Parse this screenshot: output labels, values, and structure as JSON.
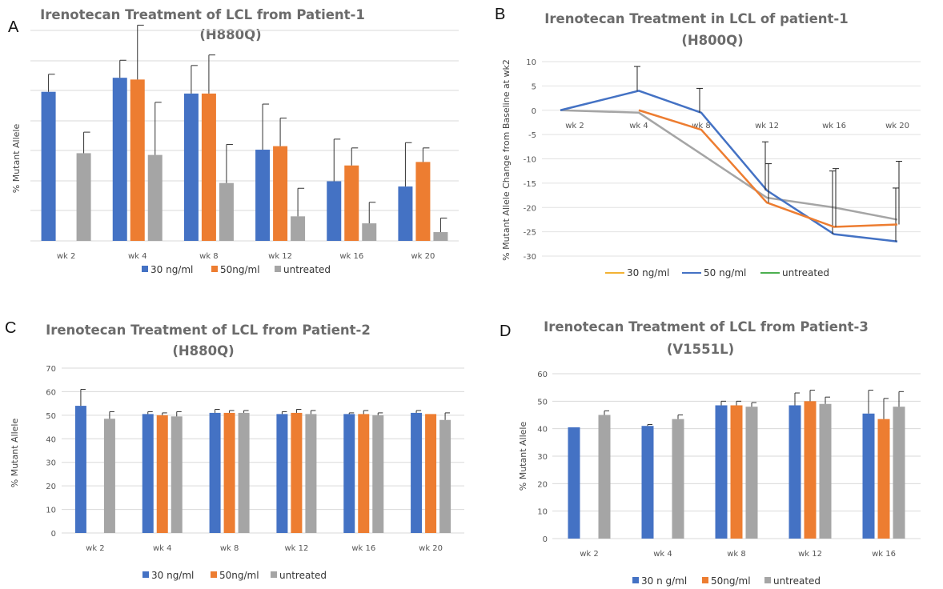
{
  "colors": {
    "c30": "#4472C4",
    "c50": "#ED7D31",
    "untreated": "#A5A5A5",
    "legend_30_line": "#F2B234",
    "legend_untreated_line": "#4CAF50"
  },
  "chart_data": [
    {
      "panel": "A",
      "type": "bar",
      "title_line1": "Irenotecan Treatment of LCL from Patient-1",
      "title_line2": "(H880Q)",
      "ylabel": "% Mutant Allele",
      "categories": [
        "wk 2",
        "wk 4",
        "wk 8",
        "wk 12",
        "wk 16",
        "wk 20"
      ],
      "ylim": [
        0,
        60
      ],
      "series": [
        {
          "name": "30 ng/ml",
          "values": [
            42.5,
            46.5,
            42,
            26,
            17,
            15.5
          ],
          "err": [
            5,
            5,
            8,
            13,
            12,
            12.5
          ]
        },
        {
          "name": "50ng/ml",
          "values": [
            null,
            46,
            42,
            27,
            21.5,
            22.5
          ],
          "err": [
            null,
            15.5,
            11,
            8,
            5,
            4
          ]
        },
        {
          "name": "untreated",
          "values": [
            25,
            24.5,
            16.5,
            7,
            5,
            2.5
          ],
          "err": [
            6,
            15,
            11,
            8,
            6,
            4
          ]
        }
      ]
    },
    {
      "panel": "B",
      "type": "line",
      "title_line1": "Irenotecan Treatment in LCL of patient-1",
      "title_line2": "(H800Q)",
      "ylabel": "% Mutant Allele Change from Baseline at wk2",
      "categories": [
        "wk 2",
        "wk 4",
        "wk 8",
        "wk 12",
        "wk 16",
        "wk 20"
      ],
      "category_labels": [
        "wk 2",
        "wk 4",
        "wk 8",
        "wk 12",
        "wk 16",
        "wk 20"
      ],
      "y_ticks": [
        10,
        5,
        0,
        -5,
        -10,
        -15,
        -20,
        -25,
        -30
      ],
      "ylim": [
        -30,
        10
      ],
      "series": [
        {
          "name": "30 ng/ml",
          "values": [
            null,
            0,
            -4,
            -19,
            -24,
            -23.5
          ],
          "err": [
            null,
            null,
            null,
            8,
            12,
            13
          ]
        },
        {
          "name": "50 ng/ml",
          "values": [
            0,
            4,
            -0.5,
            -16.5,
            -25.5,
            -27
          ],
          "err": [
            null,
            5,
            5,
            10,
            13,
            11
          ]
        },
        {
          "name": "untreated",
          "values": [
            0,
            -0.5,
            -9,
            -18,
            -20,
            -22.5
          ],
          "err": [
            null,
            null,
            null,
            null,
            null,
            null
          ]
        }
      ],
      "legend_labels": [
        "30 ng/ml",
        "50 ng/ml",
        "untreated"
      ]
    },
    {
      "panel": "C",
      "type": "bar",
      "title_line1": "Irenotecan Treatment of LCL from Patient-2",
      "title_line2": "(H880Q)",
      "ylabel": "% Mutant Allele",
      "categories": [
        "wk 2",
        "wk 4",
        "wk 8",
        "wk 12",
        "wk 16",
        "wk 20"
      ],
      "y_ticks": [
        0,
        10,
        20,
        30,
        40,
        50,
        60,
        70
      ],
      "ylim": [
        0,
        70
      ],
      "series": [
        {
          "name": "30 ng/ml",
          "values": [
            54,
            50.5,
            51,
            50.5,
            50.5,
            51
          ],
          "err": [
            7,
            1,
            1.5,
            1,
            0.5,
            1
          ]
        },
        {
          "name": "50ng/ml",
          "values": [
            null,
            50,
            51,
            51,
            50.5,
            50.5
          ],
          "err": [
            null,
            1,
            1,
            1.5,
            1.5,
            0
          ]
        },
        {
          "name": "untreated",
          "values": [
            48.5,
            49.5,
            51,
            50.5,
            50,
            48
          ],
          "err": [
            3,
            2,
            1,
            1.5,
            1,
            3
          ]
        }
      ]
    },
    {
      "panel": "D",
      "type": "bar",
      "title_line1": "Irenotecan Treatment of LCL from Patient-3",
      "title_line2": "(V1551L)",
      "ylabel": "% Mutant Allele",
      "categories": [
        "wk 2",
        "wk 4",
        "wk 8",
        "wk 12",
        "wk 16"
      ],
      "y_ticks": [
        0,
        10,
        20,
        30,
        40,
        50,
        60
      ],
      "ylim": [
        0,
        60
      ],
      "series": [
        {
          "name": "30 n g/ml",
          "values": [
            40.5,
            41,
            48.5,
            48.5,
            45.5
          ],
          "err": [
            0,
            0.5,
            1.5,
            4.5,
            8.5
          ]
        },
        {
          "name": "50ng/ml",
          "values": [
            null,
            null,
            48.5,
            50,
            43.5
          ],
          "err": [
            null,
            null,
            1.5,
            4,
            7.5
          ]
        },
        {
          "name": "untreated",
          "values": [
            45,
            43.5,
            48,
            49,
            48
          ],
          "err": [
            1.5,
            1.5,
            1.5,
            2.5,
            5.5
          ]
        }
      ]
    }
  ]
}
